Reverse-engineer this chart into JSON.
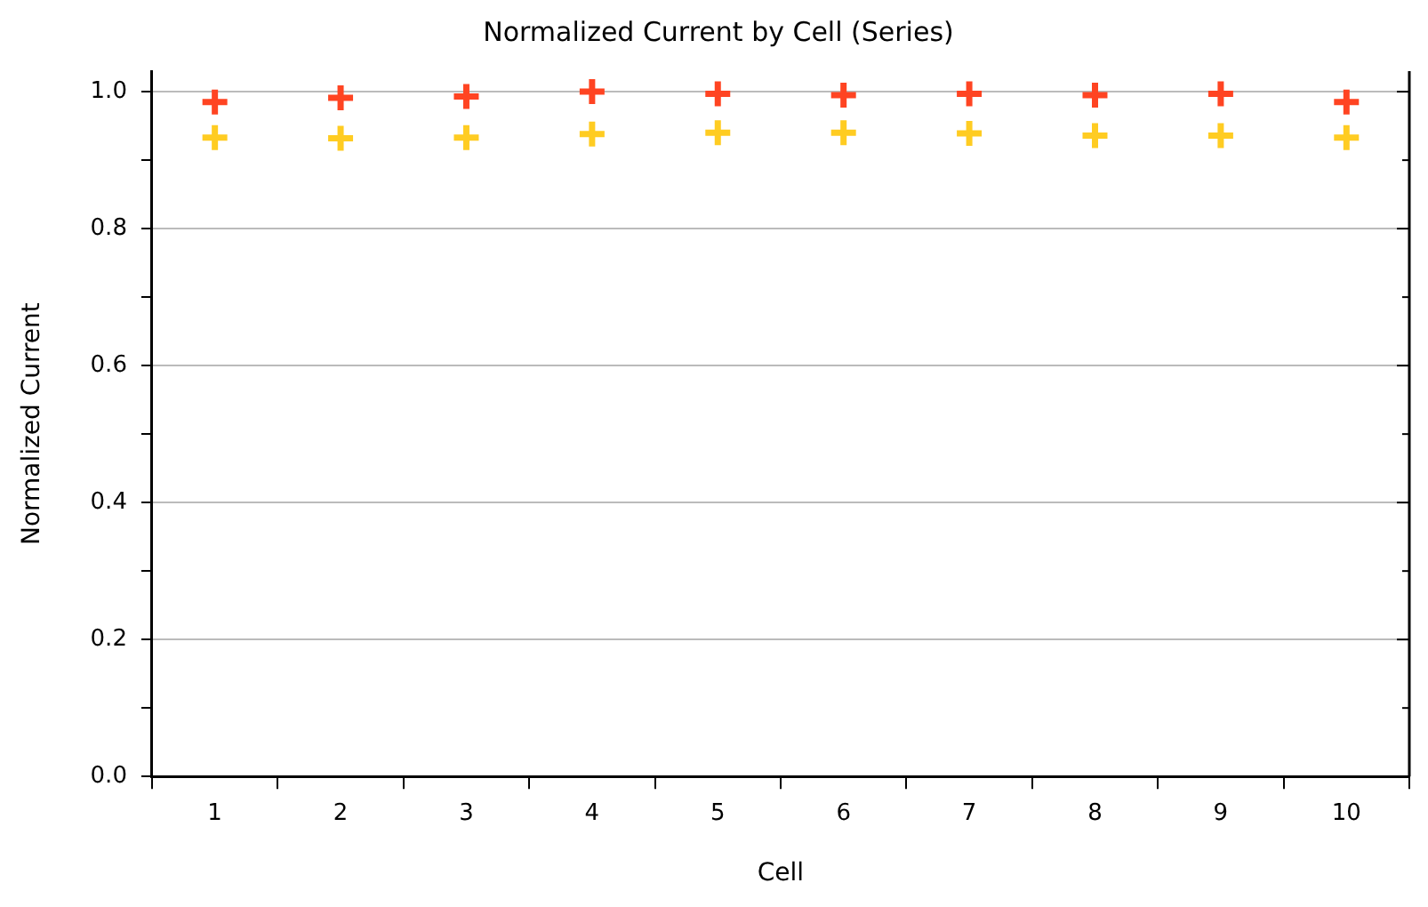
{
  "chart_data": {
    "type": "scatter",
    "title": "Normalized Current by Cell (Series)",
    "xlabel": "Cell",
    "ylabel": "Normalized Current",
    "categories": [
      "1",
      "2",
      "3",
      "4",
      "5",
      "6",
      "7",
      "8",
      "9",
      "10"
    ],
    "series": [
      {
        "color": "#ff4422",
        "values": [
          0.985,
          0.991,
          0.993,
          1.0,
          0.997,
          0.995,
          0.997,
          0.995,
          0.997,
          0.985
        ]
      },
      {
        "color": "#ffcc22",
        "values": [
          0.933,
          0.932,
          0.933,
          0.938,
          0.94,
          0.94,
          0.939,
          0.936,
          0.936,
          0.933
        ]
      }
    ],
    "ylim": [
      0,
      1.03
    ],
    "yticks": [
      {
        "value": 0,
        "label": "0.0"
      },
      {
        "value": 0.1,
        "label": null
      },
      {
        "value": 0.2,
        "label": "0.2"
      },
      {
        "value": 0.3,
        "label": null
      },
      {
        "value": 0.4,
        "label": "0.4"
      },
      {
        "value": 0.5,
        "label": null
      },
      {
        "value": 0.6,
        "label": "0.6"
      },
      {
        "value": 0.7,
        "label": null
      },
      {
        "value": 0.8,
        "label": "0.8"
      },
      {
        "value": 0.9,
        "label": null
      },
      {
        "value": 1.0,
        "label": "1.0"
      }
    ],
    "grid": "y",
    "legend": false,
    "marker": "cross"
  }
}
